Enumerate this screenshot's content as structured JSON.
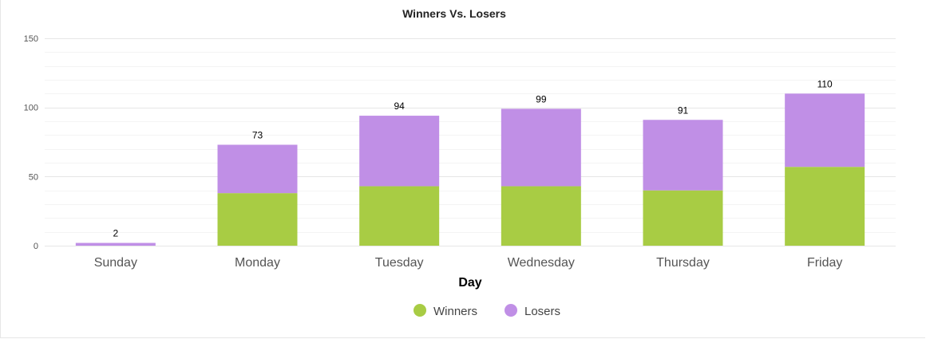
{
  "chart_data": {
    "type": "bar",
    "stacked": true,
    "title": "Winners Vs. Losers",
    "xlabel": "Day",
    "ylabel": "",
    "ylim": [
      0,
      150
    ],
    "yticks": [
      0,
      50,
      100,
      150
    ],
    "categories": [
      "Sunday",
      "Monday",
      "Tuesday",
      "Wednesday",
      "Thursday",
      "Friday"
    ],
    "series": [
      {
        "name": "Winners",
        "color": "#a8cc44",
        "values": [
          0,
          38,
          43,
          43,
          40,
          57
        ]
      },
      {
        "name": "Losers",
        "color": "#c08fe6",
        "values": [
          2,
          35,
          51,
          56,
          51,
          53
        ]
      }
    ],
    "totals": [
      2,
      73,
      94,
      99,
      91,
      110
    ],
    "grid": true,
    "legend_position": "bottom-center"
  }
}
